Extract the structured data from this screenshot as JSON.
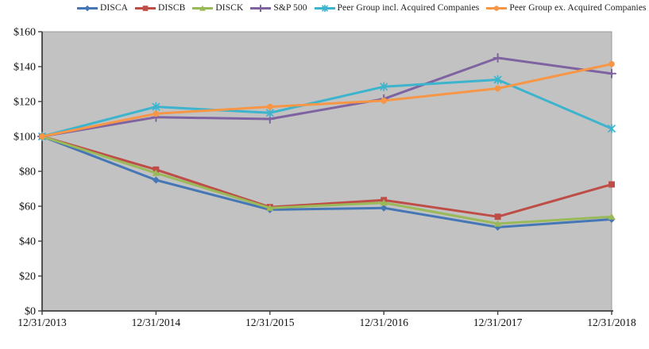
{
  "chart_data": {
    "type": "line",
    "title": "",
    "xlabel": "",
    "ylabel": "",
    "legend_position": "top",
    "grid": false,
    "plot_bg_color": "#c2c2c2",
    "plot_border_color": "#9a9a9a",
    "axis_color": "#404040",
    "tick_label_color": "#111111",
    "ylim": [
      0,
      160
    ],
    "ytick_step": 20,
    "ytick_labels": [
      "$0",
      "$20",
      "$40",
      "$60",
      "$80",
      "$100",
      "$120",
      "$140",
      "$160"
    ],
    "categories": [
      "12/31/2013",
      "12/31/2014",
      "12/31/2015",
      "12/31/2016",
      "12/31/2017",
      "12/31/2018"
    ],
    "series": [
      {
        "name": "DISCA",
        "color": "#4577b6",
        "marker": "diamond",
        "values": [
          100,
          75,
          58,
          59,
          48,
          52.5
        ]
      },
      {
        "name": "DISCB",
        "color": "#bf4d47",
        "marker": "square",
        "values": [
          100,
          81,
          59.5,
          63.5,
          54,
          72.5
        ]
      },
      {
        "name": "DISCK",
        "color": "#9aba59",
        "marker": "triangle",
        "values": [
          100,
          79,
          59,
          62,
          50,
          54
        ]
      },
      {
        "name": "S&P 500",
        "color": "#7f63a1",
        "marker": "plus",
        "values": [
          100,
          111,
          110,
          121.5,
          145,
          136
        ]
      },
      {
        "name": "Peer Group incl. Acquired Companies",
        "color": "#3cb4cd",
        "marker": "asterisk",
        "values": [
          100,
          117,
          113.5,
          128.5,
          132.5,
          104.5
        ]
      },
      {
        "name": "Peer Group ex. Acquired Companies",
        "color": "#f79646",
        "marker": "circle",
        "values": [
          100,
          113,
          117,
          120.5,
          127.5,
          141.5
        ]
      }
    ]
  }
}
